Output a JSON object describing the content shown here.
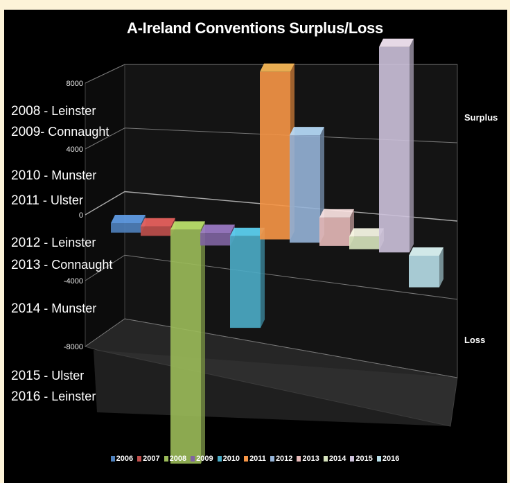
{
  "colors": {
    "background": "#fdf3d8",
    "plot": "#000000",
    "text": "#ffffff"
  },
  "side_labels": [
    {
      "year": "2008",
      "text": " - Leinster"
    },
    {
      "year": "2009",
      "text": "- Connaught"
    },
    {
      "year": "2010",
      "text": " - Munster"
    },
    {
      "year": "2011",
      "text": " - Ulster"
    },
    {
      "year": "2012",
      "text": " - Leinster"
    },
    {
      "year": "2013",
      "text": " - Connaught"
    },
    {
      "year": "2014",
      "text": " - Munster"
    },
    {
      "year": "2015",
      "text": " - Ulster"
    },
    {
      "year": "2016",
      "text": " - Leinster"
    }
  ],
  "region_labels": {
    "surplus": "Surplus",
    "loss": "Loss"
  },
  "chart_data": {
    "type": "bar",
    "style": "3d-column",
    "title": "A-Ireland Conventions Surplus/Loss",
    "xlabel": "",
    "ylabel": "",
    "ylim": [
      -8000,
      8000
    ],
    "yticks": [
      8000,
      4000,
      0,
      -4000,
      -8000
    ],
    "grid": true,
    "legend_position": "bottom",
    "categories": [
      "2006",
      "2007",
      "2008",
      "2009",
      "2010",
      "2011",
      "2012",
      "2013",
      "2014",
      "2015",
      "2016"
    ],
    "series": [
      {
        "name": "2006",
        "value": -300,
        "color": "#4f81bd"
      },
      {
        "name": "2007",
        "value": -300,
        "color": "#c0504d"
      },
      {
        "name": "2008",
        "value": -7400,
        "color": "#9bbb59"
      },
      {
        "name": "2009",
        "value": -400,
        "color": "#8064a2"
      },
      {
        "name": "2010",
        "value": -2900,
        "color": "#4bacc6"
      },
      {
        "name": "2011",
        "value": 5300,
        "color": "#f79646"
      },
      {
        "name": "2012",
        "value": 3400,
        "color": "#95b3d7"
      },
      {
        "name": "2013",
        "value": 900,
        "color": "#e6b9b8"
      },
      {
        "name": "2014",
        "value": 400,
        "color": "#d7e4bd"
      },
      {
        "name": "2015",
        "value": 6500,
        "color": "#ccc1da"
      },
      {
        "name": "2016",
        "value": -1000,
        "color": "#b7dee8"
      }
    ]
  }
}
